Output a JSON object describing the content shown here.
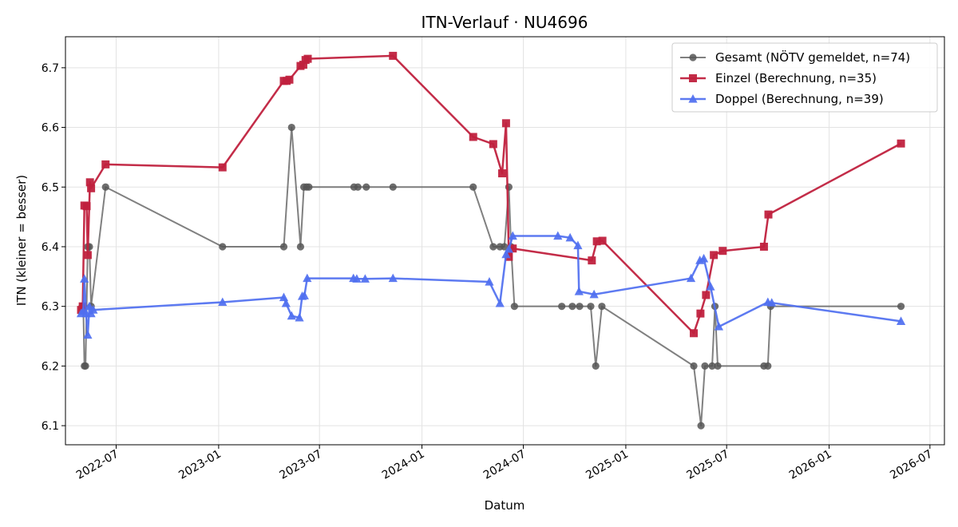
{
  "chart_data": {
    "type": "line",
    "title": "ITN-Verlauf · NU4696",
    "xlabel": "Datum",
    "ylabel": "ITN  (kleiner = besser)",
    "xlim": [
      "2022-04-01",
      "2026-07-27"
    ],
    "ylim": [
      6.068,
      6.752
    ],
    "yticks": [
      6.1,
      6.2,
      6.3,
      6.4,
      6.5,
      6.6,
      6.7
    ],
    "xticks": [
      "2022-07",
      "2023-01",
      "2023-07",
      "2024-01",
      "2024-07",
      "2025-01",
      "2025-07",
      "2026-01",
      "2026-07"
    ],
    "grid": true,
    "legend_position": "top-right",
    "series": [
      {
        "name": "Gesamt (NÖTV gemeldet, n=74)",
        "color": "#555555",
        "marker": "circle",
        "points": [
          [
            "2022-05-01",
            6.3
          ],
          [
            "2022-05-03",
            6.3
          ],
          [
            "2022-05-05",
            6.2
          ],
          [
            "2022-05-07",
            6.2
          ],
          [
            "2022-05-11",
            6.4
          ],
          [
            "2022-05-14",
            6.4
          ],
          [
            "2022-05-17",
            6.3
          ],
          [
            "2022-06-12",
            6.5
          ],
          [
            "2023-01-08",
            6.4
          ],
          [
            "2023-04-28",
            6.4
          ],
          [
            "2023-05-12",
            6.6
          ],
          [
            "2023-05-28",
            6.4
          ],
          [
            "2023-06-03",
            6.5
          ],
          [
            "2023-06-08",
            6.5
          ],
          [
            "2023-06-12",
            6.5
          ],
          [
            "2023-09-01",
            6.5
          ],
          [
            "2023-09-08",
            6.5
          ],
          [
            "2023-09-23",
            6.5
          ],
          [
            "2023-11-10",
            6.5
          ],
          [
            "2024-04-02",
            6.5
          ],
          [
            "2024-05-08",
            6.4
          ],
          [
            "2024-05-20",
            6.4
          ],
          [
            "2024-05-28",
            6.4
          ],
          [
            "2024-06-05",
            6.5
          ],
          [
            "2024-06-09",
            6.4
          ],
          [
            "2024-06-15",
            6.3
          ],
          [
            "2024-09-08",
            6.3
          ],
          [
            "2024-09-27",
            6.3
          ],
          [
            "2024-10-10",
            6.3
          ],
          [
            "2024-10-30",
            6.3
          ],
          [
            "2024-11-08",
            6.2
          ],
          [
            "2024-11-19",
            6.3
          ],
          [
            "2025-05-03",
            6.2
          ],
          [
            "2025-05-16",
            6.1
          ],
          [
            "2025-05-23",
            6.2
          ],
          [
            "2025-06-05",
            6.2
          ],
          [
            "2025-06-10",
            6.3
          ],
          [
            "2025-06-15",
            6.2
          ],
          [
            "2025-09-06",
            6.2
          ],
          [
            "2025-09-13",
            6.2
          ],
          [
            "2025-09-18",
            6.3
          ],
          [
            "2026-05-10",
            6.3
          ]
        ]
      },
      {
        "name": "Einzel (Berechnung, n=35)",
        "color": "#c0213e",
        "marker": "square",
        "points": [
          [
            "2022-04-29",
            6.294
          ],
          [
            "2022-05-02",
            6.3
          ],
          [
            "2022-05-05",
            6.469
          ],
          [
            "2022-05-09",
            6.468
          ],
          [
            "2022-05-11",
            6.386
          ],
          [
            "2022-05-15",
            6.508
          ],
          [
            "2022-05-17",
            6.498
          ],
          [
            "2022-06-12",
            6.538
          ],
          [
            "2023-01-08",
            6.533
          ],
          [
            "2023-04-28",
            6.678
          ],
          [
            "2023-05-03",
            6.678
          ],
          [
            "2023-05-08",
            6.68
          ],
          [
            "2023-05-28",
            6.703
          ],
          [
            "2023-06-02",
            6.705
          ],
          [
            "2023-06-06",
            6.713
          ],
          [
            "2023-06-10",
            6.715
          ],
          [
            "2023-11-10",
            6.72
          ],
          [
            "2024-04-02",
            6.584
          ],
          [
            "2024-05-08",
            6.572
          ],
          [
            "2024-05-24",
            6.523
          ],
          [
            "2024-05-31",
            6.607
          ],
          [
            "2024-06-05",
            6.383
          ],
          [
            "2024-06-12",
            6.397
          ],
          [
            "2024-11-01",
            6.377
          ],
          [
            "2024-11-10",
            6.409
          ],
          [
            "2024-11-20",
            6.41
          ],
          [
            "2025-05-03",
            6.255
          ],
          [
            "2025-05-15",
            6.288
          ],
          [
            "2025-05-25",
            6.319
          ],
          [
            "2025-06-08",
            6.386
          ],
          [
            "2025-06-24",
            6.393
          ],
          [
            "2025-09-06",
            6.4
          ],
          [
            "2025-09-14",
            6.454
          ],
          [
            "2026-05-10",
            6.573
          ]
        ]
      },
      {
        "name": "Doppel (Berechnung, n=39)",
        "color": "#4f6ff0",
        "marker": "triangle",
        "points": [
          [
            "2022-04-29",
            6.288
          ],
          [
            "2022-05-03",
            6.292
          ],
          [
            "2022-05-05",
            6.346
          ],
          [
            "2022-05-08",
            6.288
          ],
          [
            "2022-05-11",
            6.252
          ],
          [
            "2022-05-14",
            6.3
          ],
          [
            "2022-05-17",
            6.288
          ],
          [
            "2022-05-21",
            6.294
          ],
          [
            "2023-01-08",
            6.307
          ],
          [
            "2023-04-28",
            6.315
          ],
          [
            "2023-05-02",
            6.305
          ],
          [
            "2023-05-12",
            6.284
          ],
          [
            "2023-05-26",
            6.281
          ],
          [
            "2023-05-31",
            6.317
          ],
          [
            "2023-06-04",
            6.318
          ],
          [
            "2023-06-09",
            6.347
          ],
          [
            "2023-08-31",
            6.347
          ],
          [
            "2023-09-06",
            6.346
          ],
          [
            "2023-09-21",
            6.346
          ],
          [
            "2023-11-10",
            6.347
          ],
          [
            "2024-05-01",
            6.341
          ],
          [
            "2024-05-20",
            6.305
          ],
          [
            "2024-05-31",
            6.387
          ],
          [
            "2024-06-05",
            6.396
          ],
          [
            "2024-06-12",
            6.418
          ],
          [
            "2024-09-01",
            6.418
          ],
          [
            "2024-09-23",
            6.415
          ],
          [
            "2024-10-07",
            6.402
          ],
          [
            "2024-10-09",
            6.325
          ],
          [
            "2024-11-05",
            6.32
          ],
          [
            "2025-04-28",
            6.347
          ],
          [
            "2025-05-14",
            6.377
          ],
          [
            "2025-05-21",
            6.38
          ],
          [
            "2025-06-02",
            6.333
          ],
          [
            "2025-06-17",
            6.266
          ],
          [
            "2025-09-13",
            6.307
          ],
          [
            "2025-09-20",
            6.306
          ],
          [
            "2026-05-10",
            6.275
          ]
        ]
      }
    ]
  }
}
